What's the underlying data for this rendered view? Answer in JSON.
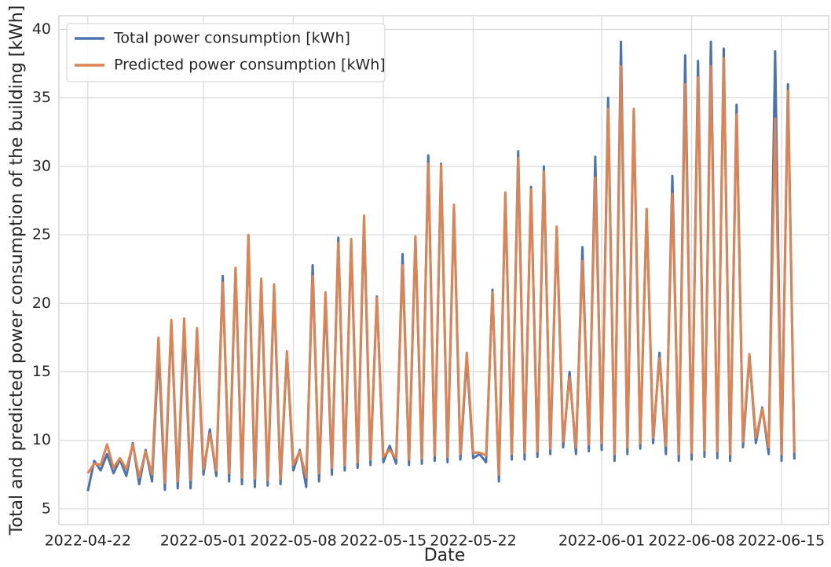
{
  "chart_data": {
    "type": "line",
    "x_label": "Date",
    "y_label": "Total and predicted power consumption of the building [kWh]",
    "x": [
      "2022-04-22 00:00",
      "2022-04-22 12:00",
      "2022-04-23 00:00",
      "2022-04-23 12:00",
      "2022-04-24 00:00",
      "2022-04-24 12:00",
      "2022-04-25 00:00",
      "2022-04-25 12:00",
      "2022-04-26 00:00",
      "2022-04-26 12:00",
      "2022-04-27 00:00",
      "2022-04-27 12:00",
      "2022-04-28 00:00",
      "2022-04-28 12:00",
      "2022-04-29 00:00",
      "2022-04-29 12:00",
      "2022-04-30 00:00",
      "2022-04-30 12:00",
      "2022-05-01 00:00",
      "2022-05-01 12:00",
      "2022-05-02 00:00",
      "2022-05-02 12:00",
      "2022-05-03 00:00",
      "2022-05-03 12:00",
      "2022-05-04 00:00",
      "2022-05-04 12:00",
      "2022-05-05 00:00",
      "2022-05-05 12:00",
      "2022-05-06 00:00",
      "2022-05-06 12:00",
      "2022-05-07 00:00",
      "2022-05-07 12:00",
      "2022-05-08 00:00",
      "2022-05-08 12:00",
      "2022-05-09 00:00",
      "2022-05-09 12:00",
      "2022-05-10 00:00",
      "2022-05-10 12:00",
      "2022-05-11 00:00",
      "2022-05-11 12:00",
      "2022-05-12 00:00",
      "2022-05-12 12:00",
      "2022-05-13 00:00",
      "2022-05-13 12:00",
      "2022-05-14 00:00",
      "2022-05-14 12:00",
      "2022-05-15 00:00",
      "2022-05-15 12:00",
      "2022-05-16 00:00",
      "2022-05-16 12:00",
      "2022-05-17 00:00",
      "2022-05-17 12:00",
      "2022-05-18 00:00",
      "2022-05-18 12:00",
      "2022-05-19 00:00",
      "2022-05-19 12:00",
      "2022-05-20 00:00",
      "2022-05-20 12:00",
      "2022-05-21 00:00",
      "2022-05-21 12:00",
      "2022-05-22 00:00",
      "2022-05-22 12:00",
      "2022-05-23 00:00",
      "2022-05-23 12:00",
      "2022-05-24 00:00",
      "2022-05-24 12:00",
      "2022-05-25 00:00",
      "2022-05-25 12:00",
      "2022-05-26 00:00",
      "2022-05-26 12:00",
      "2022-05-27 00:00",
      "2022-05-27 12:00",
      "2022-05-28 00:00",
      "2022-05-28 12:00",
      "2022-05-29 00:00",
      "2022-05-29 12:00",
      "2022-05-30 00:00",
      "2022-05-30 12:00",
      "2022-05-31 00:00",
      "2022-05-31 12:00",
      "2022-06-01 00:00",
      "2022-06-01 12:00",
      "2022-06-02 00:00",
      "2022-06-02 12:00",
      "2022-06-03 00:00",
      "2022-06-03 12:00",
      "2022-06-04 00:00",
      "2022-06-04 12:00",
      "2022-06-05 00:00",
      "2022-06-05 12:00",
      "2022-06-06 00:00",
      "2022-06-06 12:00",
      "2022-06-07 00:00",
      "2022-06-07 12:00",
      "2022-06-08 00:00",
      "2022-06-08 12:00",
      "2022-06-09 00:00",
      "2022-06-09 12:00",
      "2022-06-10 00:00",
      "2022-06-10 12:00",
      "2022-06-11 00:00",
      "2022-06-11 12:00",
      "2022-06-12 00:00",
      "2022-06-12 12:00",
      "2022-06-13 00:00",
      "2022-06-13 12:00",
      "2022-06-14 00:00",
      "2022-06-14 12:00",
      "2022-06-15 00:00",
      "2022-06-15 12:00",
      "2022-06-16 00:00"
    ],
    "series": [
      {
        "name": "Total power consumption [kWh]",
        "color": "#4c72b0",
        "values": [
          6.3,
          8.5,
          7.8,
          9.0,
          7.6,
          8.6,
          7.4,
          9.8,
          6.8,
          9.3,
          7.0,
          16.5,
          6.4,
          18.6,
          6.5,
          18.2,
          6.5,
          17.9,
          7.5,
          10.8,
          7.4,
          22.0,
          7.0,
          22.5,
          6.8,
          24.9,
          6.6,
          21.5,
          6.7,
          21.0,
          6.8,
          16.4,
          7.8,
          9.3,
          6.6,
          22.8,
          7.0,
          20.5,
          7.5,
          24.8,
          7.8,
          24.5,
          8.0,
          26.0,
          8.2,
          20.5,
          8.4,
          9.6,
          8.3,
          23.6,
          8.2,
          24.8,
          8.3,
          30.8,
          8.5,
          30.2,
          8.4,
          27.0,
          8.6,
          16.0,
          8.7,
          9.0,
          8.4,
          21.0,
          7.0,
          28.0,
          8.6,
          31.1,
          8.6,
          28.5,
          8.8,
          30.0,
          9.0,
          25.4,
          9.5,
          15.0,
          9.0,
          24.1,
          9.2,
          30.7,
          9.3,
          35.0,
          8.5,
          39.1,
          9.0,
          34.0,
          9.4,
          26.8,
          9.8,
          16.4,
          9.0,
          29.3,
          8.5,
          38.1,
          8.6,
          37.7,
          8.8,
          39.1,
          8.7,
          38.6,
          8.5,
          34.5,
          9.5,
          16.2,
          9.8,
          12.4,
          9.0,
          38.4,
          8.5,
          36.0,
          8.6
        ]
      },
      {
        "name": "Predicted power consumption [kWh]",
        "color": "#dd8452",
        "values": [
          7.6,
          8.3,
          8.2,
          9.7,
          8.0,
          8.7,
          7.9,
          9.7,
          7.3,
          9.2,
          7.5,
          17.5,
          6.9,
          18.8,
          7.0,
          18.9,
          7.1,
          18.2,
          7.9,
          10.5,
          7.8,
          21.5,
          7.6,
          22.6,
          7.3,
          25.0,
          7.2,
          21.8,
          7.1,
          21.4,
          7.2,
          16.5,
          8.2,
          9.2,
          7.3,
          22.0,
          7.6,
          20.8,
          8.0,
          24.4,
          8.2,
          24.7,
          8.4,
          26.4,
          8.6,
          20.4,
          8.8,
          9.3,
          8.7,
          22.8,
          8.6,
          24.9,
          8.7,
          30.2,
          8.9,
          30.1,
          8.8,
          27.2,
          9.0,
          16.4,
          9.1,
          9.1,
          8.9,
          20.8,
          7.5,
          28.1,
          9.0,
          30.6,
          9.1,
          28.3,
          9.2,
          29.6,
          9.4,
          25.6,
          9.9,
          14.6,
          9.5,
          23.1,
          9.7,
          29.2,
          9.8,
          34.2,
          9.0,
          37.3,
          9.5,
          34.2,
          9.8,
          26.9,
          10.2,
          16.0,
          9.6,
          28.0,
          9.0,
          36.0,
          9.1,
          36.5,
          9.3,
          37.3,
          9.2,
          37.9,
          9.0,
          33.8,
          9.9,
          16.3,
          10.2,
          12.3,
          9.5,
          33.5,
          9.0,
          35.5,
          9.1
        ]
      }
    ],
    "xlim": [
      "2022-04-19 18:00",
      "2022-06-18 16:00"
    ],
    "xticks": [
      "2022-04-22",
      "2022-05-01",
      "2022-05-08",
      "2022-05-15",
      "2022-05-22",
      "2022-06-01",
      "2022-06-08",
      "2022-06-15"
    ],
    "ylim": [
      3.85,
      41
    ],
    "yticks": [
      5,
      10,
      15,
      20,
      25,
      30,
      35,
      40
    ],
    "grid": true,
    "legend": "upper left"
  }
}
